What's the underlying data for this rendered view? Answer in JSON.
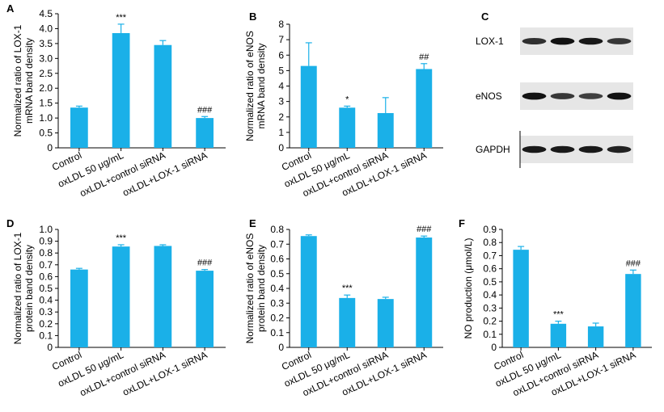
{
  "colors": {
    "bar": "#1ab0e8",
    "axis": "#000000"
  },
  "categories": [
    "Control",
    "oxLDL 50 μg/mL",
    "oxLDL+control siRNA",
    "oxLDL+LOX-1 siRNA"
  ],
  "panels": [
    {
      "letter": "A",
      "chart_data": {
        "type": "bar",
        "ylabel": [
          "Normalized ratio of LOX-1",
          "mRNA band density"
        ],
        "ylim": [
          0,
          4.5
        ],
        "yticks": [
          0,
          0.5,
          1,
          1.5,
          2,
          2.5,
          3,
          3.5,
          4,
          4.5
        ],
        "ytick_labels": [
          "0",
          "0.5",
          "1.0",
          "1.5",
          "2.0",
          "2.5",
          "3.0",
          "3.5",
          "4.0",
          "4.5"
        ],
        "values": [
          1.35,
          3.85,
          3.45,
          1.0
        ],
        "errors": [
          0.05,
          0.3,
          0.15,
          0.05
        ],
        "annotations": [
          "",
          "***",
          "",
          "###"
        ]
      }
    },
    {
      "letter": "B",
      "chart_data": {
        "type": "bar",
        "ylabel": [
          "Normalized ratio of eNOS",
          "mRNA band density"
        ],
        "ylim": [
          0,
          8
        ],
        "yticks": [
          0,
          1,
          2,
          3,
          4,
          5,
          6,
          7,
          8
        ],
        "ytick_labels": [
          "0",
          "1",
          "2",
          "3",
          "4",
          "5",
          "6",
          "7",
          "8"
        ],
        "values": [
          5.3,
          2.6,
          2.25,
          5.1
        ],
        "errors": [
          1.5,
          0.1,
          1.0,
          0.35
        ],
        "annotations": [
          "",
          "*",
          "",
          "##"
        ]
      }
    },
    {
      "letter": "D",
      "chart_data": {
        "type": "bar",
        "ylabel": [
          "Normalized ratio of LOX-1",
          "protein band density"
        ],
        "ylim": [
          0,
          1.0
        ],
        "yticks": [
          0,
          0.1,
          0.2,
          0.3,
          0.4,
          0.5,
          0.6,
          0.7,
          0.8,
          0.9,
          1.0
        ],
        "ytick_labels": [
          "0",
          "0.1",
          "0.2",
          "0.3",
          "0.4",
          "0.5",
          "0.6",
          "0.7",
          "0.8",
          "0.9",
          "1.0"
        ],
        "values": [
          0.66,
          0.855,
          0.86,
          0.65
        ],
        "errors": [
          0.01,
          0.015,
          0.01,
          0.01
        ],
        "annotations": [
          "",
          "***",
          "",
          "###"
        ]
      }
    },
    {
      "letter": "E",
      "chart_data": {
        "type": "bar",
        "ylabel": [
          "Normalized ratio of eNOS",
          "protein band density"
        ],
        "ylim": [
          0,
          0.8
        ],
        "yticks": [
          0,
          0.1,
          0.2,
          0.3,
          0.4,
          0.5,
          0.6,
          0.7,
          0.8
        ],
        "ytick_labels": [
          "0",
          "0.1",
          "0.2",
          "0.3",
          "0.4",
          "0.5",
          "0.6",
          "0.7",
          "0.8"
        ],
        "values": [
          0.755,
          0.335,
          0.328,
          0.745
        ],
        "errors": [
          0.008,
          0.02,
          0.012,
          0.01
        ],
        "annotations": [
          "",
          "***",
          "",
          "###"
        ]
      }
    },
    {
      "letter": "F",
      "chart_data": {
        "type": "bar",
        "ylabel": [
          "NO production (μmol/L)"
        ],
        "ylim": [
          0,
          0.9
        ],
        "yticks": [
          0,
          0.1,
          0.2,
          0.3,
          0.4,
          0.5,
          0.6,
          0.7,
          0.8,
          0.9
        ],
        "ytick_labels": [
          "0",
          "0.1",
          "0.2",
          "0.3",
          "0.4",
          "0.5",
          "0.6",
          "0.7",
          "0.8",
          "0.9"
        ],
        "values": [
          0.745,
          0.18,
          0.16,
          0.56
        ],
        "errors": [
          0.025,
          0.02,
          0.025,
          0.03
        ],
        "annotations": [
          "",
          "***",
          "",
          "###"
        ]
      }
    }
  ],
  "blot_panel": {
    "letter": "C",
    "rows": [
      {
        "label": "LOX-1",
        "intensity": [
          0.75,
          0.95,
          0.9,
          0.7
        ]
      },
      {
        "label": "eNOS",
        "intensity": [
          0.95,
          0.7,
          0.65,
          0.95
        ]
      },
      {
        "label": "GAPDH",
        "intensity": [
          0.9,
          0.9,
          0.9,
          0.85
        ]
      }
    ]
  }
}
